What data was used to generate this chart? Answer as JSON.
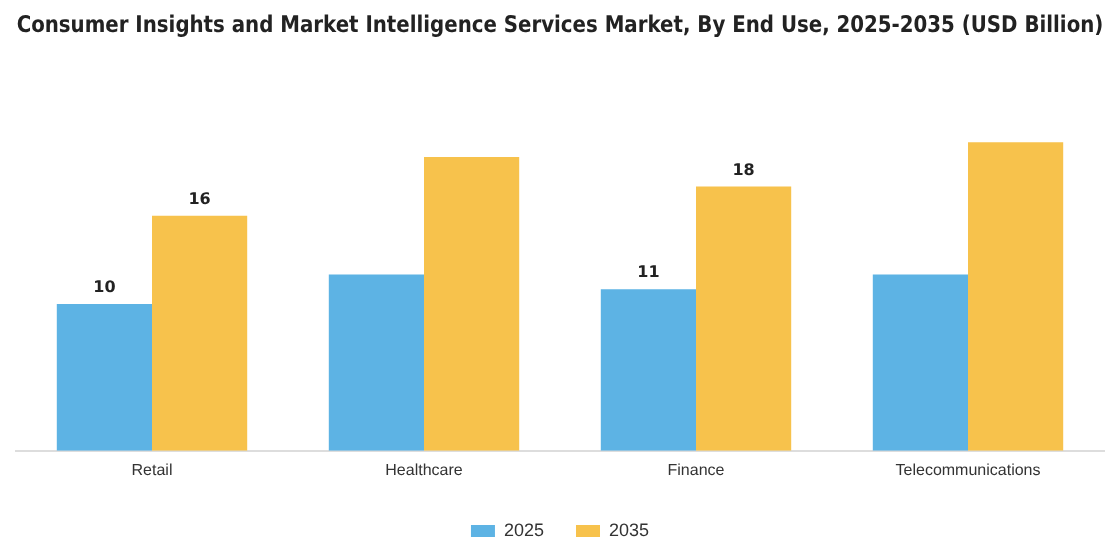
{
  "chart_data": {
    "type": "bar",
    "title": "Consumer Insights and Market Intelligence Services Market, By End Use, 2025-2035 (USD Billion)",
    "categories": [
      "Retail",
      "Healthcare",
      "Finance",
      "Telecommunications"
    ],
    "series": [
      {
        "name": "2025",
        "color": "#5db3e4",
        "values": [
          10,
          12,
          11,
          12
        ],
        "value_labels": [
          "10",
          null,
          "11",
          null
        ]
      },
      {
        "name": "2035",
        "color": "#f7c24c",
        "values": [
          16,
          20,
          18,
          21
        ],
        "value_labels": [
          "16",
          null,
          "18",
          null
        ]
      }
    ],
    "legend": "bottom",
    "grid": false,
    "tick_labels": "x"
  }
}
